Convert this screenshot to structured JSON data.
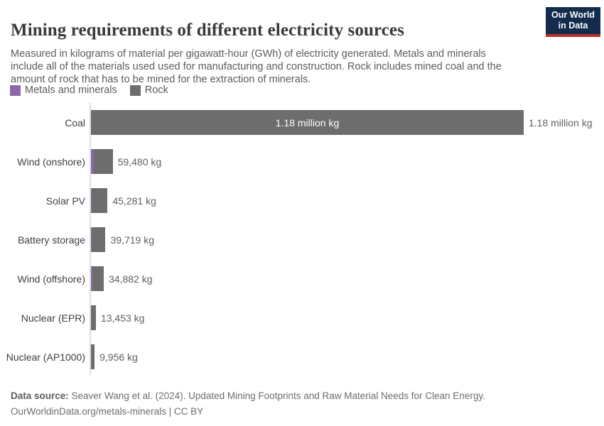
{
  "header": {
    "logo_line1": "Our World",
    "logo_line2": "in Data",
    "logo_bg": "#132c4d",
    "logo_stripe": "#bc2f28"
  },
  "chart_data": {
    "type": "bar",
    "orientation": "horizontal",
    "stacked": true,
    "title": "Mining requirements of different electricity sources",
    "subtitle": "Measured in kilograms of material per gigawatt-hour (GWh) of electricity generated. Metals and minerals include all of the materials used used for manufacturing and construction. Rock includes mined coal and the amount of rock that has to be mined for the extraction of minerals.",
    "unit": "kg of material per GWh",
    "legend_position": "top-left",
    "grid": false,
    "x_axis_hidden": true,
    "xlim_kg": [
      0,
      1180000
    ],
    "categories": [
      "Coal",
      "Wind (onshore)",
      "Solar PV",
      "Battery storage",
      "Wind (offshore)",
      "Nuclear (EPR)",
      "Nuclear (AP1000)"
    ],
    "totals_kg": [
      1180000,
      59480,
      45281,
      39719,
      34882,
      13453,
      9956
    ],
    "total_labels": [
      "1.18 million kg",
      "59,480 kg",
      "45,281 kg",
      "39,719 kg",
      "34,882 kg",
      "13,453 kg",
      "9,956 kg"
    ],
    "series": [
      {
        "name": "Metals and minerals",
        "color": "#8c67ab",
        "values_kg_est": [
          0,
          7000,
          1600,
          1200,
          3000,
          500,
          400
        ]
      },
      {
        "name": "Rock",
        "color": "#6d6d6d",
        "values_kg_est": [
          1180000,
          52480,
          43681,
          38519,
          31882,
          12953,
          9556
        ]
      }
    ],
    "inside_bar_label": {
      "category": "Coal",
      "text": "1.18 million kg"
    }
  },
  "footer": {
    "datasource_label": "Data source:",
    "datasource_text": " Seaver Wang et al. (2024). Updated Mining Footprints and Raw Material Needs for Clean Energy.",
    "license_line": "OurWorldinData.org/metals-minerals | CC BY"
  },
  "colors": {
    "title_text": "#3a3a3a",
    "body_text": "#5c5c5c",
    "bar_rock": "#6d6d6d",
    "bar_metals": "#8c67ab",
    "axis_line": "#dddddd"
  }
}
